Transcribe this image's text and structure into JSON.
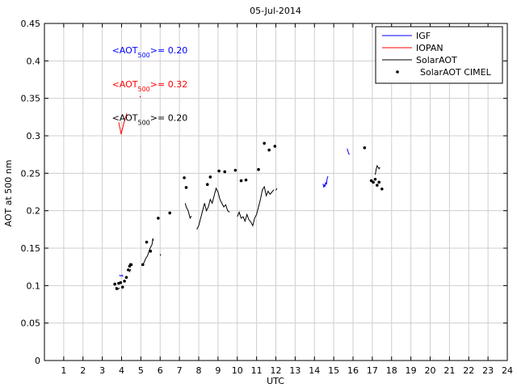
{
  "chart_data": {
    "type": "line",
    "title": "05-Jul-2014",
    "xlabel": "UTC",
    "ylabel": "AOT at 500 nm",
    "xlim": [
      0,
      24
    ],
    "ylim": [
      0,
      0.45
    ],
    "x_ticks": [
      1,
      2,
      3,
      4,
      5,
      6,
      7,
      8,
      9,
      10,
      11,
      12,
      13,
      14,
      15,
      16,
      17,
      18,
      19,
      20,
      21,
      22,
      23,
      24
    ],
    "y_ticks": [
      0,
      0.05,
      0.1,
      0.15,
      0.2,
      0.25,
      0.3,
      0.35,
      0.4,
      0.45
    ],
    "x_tick_labels": [
      "1",
      "2",
      "3",
      "4",
      "5",
      "6",
      "7",
      "8",
      "9",
      "10",
      "11",
      "12",
      "13",
      "14",
      "15",
      "16",
      "17",
      "18",
      "19",
      "20",
      "21",
      "22",
      "23",
      "24"
    ],
    "y_tick_labels": [
      "0",
      "0.05",
      "0.1",
      "0.15",
      "0.2",
      "0.25",
      "0.3",
      "0.35",
      "0.4",
      "0.45"
    ],
    "grid": true,
    "legend_position": "top-right",
    "series": [
      {
        "name": "IGF",
        "color": "#0000ff",
        "style": "line",
        "segments": [
          [
            [
              3.88,
              0.114
            ],
            [
              3.95,
              0.113
            ],
            [
              4.02,
              0.114
            ],
            [
              4.08,
              0.112
            ]
          ],
          [
            [
              14.55,
              0.232
            ],
            [
              14.58,
              0.238
            ],
            [
              14.62,
              0.235
            ],
            [
              14.66,
              0.243
            ],
            [
              14.7,
              0.246
            ]
          ],
          [
            [
              14.45,
              0.236
            ],
            [
              14.48,
              0.231
            ],
            [
              14.52,
              0.235
            ]
          ],
          [
            [
              15.7,
              0.283
            ],
            [
              15.74,
              0.279
            ],
            [
              15.78,
              0.276
            ],
            [
              15.82,
              0.275
            ]
          ]
        ]
      },
      {
        "name": "IOPAN",
        "color": "#ff0000",
        "style": "line",
        "segments": [
          [
            [
              3.85,
              0.318
            ],
            [
              3.92,
              0.31
            ],
            [
              3.98,
              0.302
            ],
            [
              4.03,
              0.308
            ],
            [
              4.08,
              0.313
            ],
            [
              4.15,
              0.32
            ],
            [
              4.22,
              0.325
            ],
            [
              4.27,
              0.33
            ]
          ],
          [
            [
              4.95,
              0.351
            ],
            [
              4.98,
              0.353
            ]
          ]
        ]
      },
      {
        "name": "SolarAOT",
        "color": "#000000",
        "style": "line",
        "segments": [
          [
            [
              3.7,
              0.098
            ],
            [
              3.8,
              0.095
            ],
            [
              3.9,
              0.097
            ]
          ],
          [
            [
              4.35,
              0.125
            ],
            [
              4.45,
              0.13
            ]
          ],
          [
            [
              4.4,
              0.118
            ],
            [
              4.48,
              0.122
            ]
          ],
          [
            [
              5.05,
              0.128
            ],
            [
              5.15,
              0.13
            ],
            [
              5.25,
              0.136
            ],
            [
              5.35,
              0.14
            ],
            [
              5.45,
              0.148
            ],
            [
              5.52,
              0.152
            ],
            [
              5.58,
              0.155
            ],
            [
              5.62,
              0.163
            ],
            [
              5.65,
              0.16
            ]
          ],
          [
            [
              6.0,
              0.142
            ],
            [
              6.03,
              0.14
            ]
          ],
          [
            [
              7.3,
              0.21
            ],
            [
              7.35,
              0.205
            ],
            [
              7.45,
              0.2
            ],
            [
              7.55,
              0.19
            ],
            [
              7.62,
              0.193
            ]
          ],
          [
            [
              7.9,
              0.175
            ],
            [
              8.0,
              0.18
            ],
            [
              8.1,
              0.19
            ],
            [
              8.2,
              0.2
            ],
            [
              8.3,
              0.21
            ],
            [
              8.4,
              0.2
            ],
            [
              8.5,
              0.205
            ],
            [
              8.6,
              0.215
            ],
            [
              8.7,
              0.21
            ],
            [
              8.8,
              0.22
            ],
            [
              8.9,
              0.23
            ],
            [
              9.0,
              0.225
            ],
            [
              9.1,
              0.215
            ],
            [
              9.2,
              0.21
            ],
            [
              9.3,
              0.205
            ],
            [
              9.4,
              0.208
            ],
            [
              9.5,
              0.2
            ],
            [
              9.6,
              0.198
            ]
          ],
          [
            [
              10.0,
              0.192
            ],
            [
              10.1,
              0.198
            ],
            [
              10.2,
              0.19
            ],
            [
              10.3,
              0.192
            ],
            [
              10.4,
              0.186
            ],
            [
              10.5,
              0.195
            ],
            [
              10.6,
              0.188
            ],
            [
              10.7,
              0.185
            ],
            [
              10.8,
              0.18
            ],
            [
              10.9,
              0.19
            ],
            [
              11.0,
              0.195
            ],
            [
              11.1,
              0.205
            ],
            [
              11.2,
              0.215
            ],
            [
              11.3,
              0.228
            ],
            [
              11.4,
              0.232
            ],
            [
              11.5,
              0.22
            ],
            [
              11.6,
              0.226
            ],
            [
              11.7,
              0.222
            ],
            [
              11.8,
              0.225
            ],
            [
              11.9,
              0.228
            ]
          ],
          [
            [
              12.0,
              0.227
            ],
            [
              12.05,
              0.23
            ]
          ],
          [
            [
              17.15,
              0.248
            ],
            [
              17.2,
              0.255
            ],
            [
              17.25,
              0.26
            ],
            [
              17.3,
              0.258
            ],
            [
              17.35,
              0.256
            ],
            [
              17.4,
              0.258
            ]
          ]
        ]
      },
      {
        "name": "SolarAOT CIMEL",
        "color": "#000000",
        "style": "points",
        "points": [
          [
            3.65,
            0.102
          ],
          [
            3.75,
            0.096
          ],
          [
            3.85,
            0.103
          ],
          [
            3.95,
            0.104
          ],
          [
            4.05,
            0.098
          ],
          [
            4.15,
            0.106
          ],
          [
            4.25,
            0.111
          ],
          [
            4.35,
            0.121
          ],
          [
            4.42,
            0.126
          ],
          [
            4.5,
            0.128
          ],
          [
            5.1,
            0.128
          ],
          [
            5.3,
            0.158
          ],
          [
            5.5,
            0.146
          ],
          [
            5.9,
            0.19
          ],
          [
            6.5,
            0.197
          ],
          [
            7.25,
            0.244
          ],
          [
            7.35,
            0.231
          ],
          [
            8.45,
            0.235
          ],
          [
            8.6,
            0.245
          ],
          [
            9.05,
            0.253
          ],
          [
            9.35,
            0.252
          ],
          [
            9.9,
            0.254
          ],
          [
            10.2,
            0.24
          ],
          [
            10.45,
            0.241
          ],
          [
            11.1,
            0.255
          ],
          [
            11.4,
            0.29
          ],
          [
            11.65,
            0.281
          ],
          [
            11.95,
            0.286
          ],
          [
            16.6,
            0.284
          ],
          [
            16.95,
            0.24
          ],
          [
            17.05,
            0.238
          ],
          [
            17.15,
            0.242
          ],
          [
            17.25,
            0.234
          ],
          [
            17.35,
            0.238
          ],
          [
            17.5,
            0.229
          ]
        ]
      }
    ],
    "legend": [
      {
        "label": "IGF",
        "color": "#0000ff",
        "kind": "line"
      },
      {
        "label": "IOPAN",
        "color": "#ff0000",
        "kind": "line"
      },
      {
        "label": "SolarAOT",
        "color": "#000000",
        "kind": "line"
      },
      {
        "label": "SolarAOT CIMEL",
        "color": "#000000",
        "kind": "point"
      }
    ],
    "annotations": [
      {
        "prefix": "<AOT",
        "sub": "500",
        "suffix": ">= 0.20",
        "color": "#0000ff",
        "anchor_x": 3.5,
        "anchor_y": 0.41
      },
      {
        "prefix": "<AOT",
        "sub": "500",
        "suffix": ">= 0.32",
        "color": "#ff0000",
        "anchor_x": 3.5,
        "anchor_y": 0.365
      },
      {
        "prefix": "<AOT",
        "sub": "500",
        "suffix": ">= 0.20",
        "color": "#000000",
        "anchor_x": 3.5,
        "anchor_y": 0.32
      }
    ]
  }
}
